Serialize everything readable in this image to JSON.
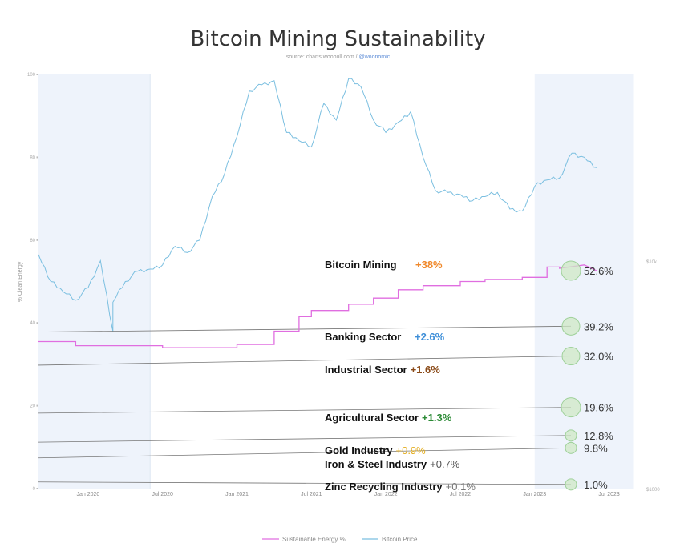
{
  "chart_data": {
    "type": "line",
    "title": "Bitcoin Mining Sustainability",
    "source_prefix": "source: charts.woobull.com / ",
    "source_handle": "@woonomic",
    "ylabel": "% Clean Energy",
    "ylim": [
      0,
      100
    ],
    "y_ticks": [
      "0",
      "20",
      "40",
      "60",
      "80",
      "100"
    ],
    "y2_ticks": [
      "$1000",
      "$10k"
    ],
    "x_ticks": [
      "Jan 2020",
      "Jul 2020",
      "Jan 2021",
      "Jul 2021",
      "Jan 2022",
      "Jul 2022",
      "Jan 2023",
      "Jul 2023"
    ],
    "legend": [
      "Sustainable Energy %",
      "Bitcoin Price"
    ],
    "colors": {
      "energy": "#e06ee0",
      "price": "#7bbfe0",
      "sector_line": "#777777",
      "bubble_fill": "#cfe8c6",
      "bubble_stroke": "#9fd19a",
      "shade": "#eef3fb"
    },
    "energy_series": {
      "dates": [
        "2019-09",
        "2019-12",
        "2019-12",
        "2020-01",
        "2020-07",
        "2020-07",
        "2021-01",
        "2021-01",
        "2021-04",
        "2021-04",
        "2021-06",
        "2021-06",
        "2021-07",
        "2021-07",
        "2021-10",
        "2021-10",
        "2021-12",
        "2021-12",
        "2022-02",
        "2022-02",
        "2022-04",
        "2022-04",
        "2022-07",
        "2022-07",
        "2022-09",
        "2022-09",
        "2022-12",
        "2022-12",
        "2023-02",
        "2023-02",
        "2023-03",
        "2023-03",
        "2023-05",
        "2023-06"
      ],
      "values": [
        35.5,
        35.5,
        34.5,
        34.5,
        34.5,
        34.0,
        34.0,
        34.8,
        34.8,
        38.0,
        38.0,
        41.5,
        41.5,
        43.0,
        43.0,
        44.5,
        44.5,
        46.0,
        46.0,
        48.0,
        48.0,
        49.0,
        49.0,
        50.0,
        50.0,
        50.5,
        50.5,
        51.0,
        51.0,
        53.5,
        53.5,
        53.2,
        54.0,
        52.6
      ]
    },
    "price_series": {
      "dates": [
        "2019-09",
        "2019-10",
        "2019-11",
        "2019-12",
        "2020-01",
        "2020-02",
        "2020-03",
        "2020-03",
        "2020-04",
        "2020-05",
        "2020-06",
        "2020-07",
        "2020-08",
        "2020-09",
        "2020-10",
        "2020-11",
        "2020-12",
        "2021-01",
        "2021-02",
        "2021-03",
        "2021-04",
        "2021-05",
        "2021-06",
        "2021-07",
        "2021-08",
        "2021-09",
        "2021-10",
        "2021-11",
        "2021-12",
        "2022-01",
        "2022-02",
        "2022-03",
        "2022-04",
        "2022-05",
        "2022-06",
        "2022-07",
        "2022-08",
        "2022-09",
        "2022-10",
        "2022-11",
        "2022-12",
        "2023-01",
        "2023-02",
        "2023-03",
        "2023-04",
        "2023-05",
        "2023-06"
      ],
      "values": [
        56.5,
        50.0,
        47.5,
        45.5,
        48.5,
        55.0,
        38.0,
        45.0,
        50.0,
        52.5,
        53.0,
        54.0,
        58.5,
        57.0,
        60.0,
        70.5,
        76.0,
        85.0,
        96.0,
        97.5,
        98.5,
        86.0,
        84.0,
        82.5,
        93.0,
        89.0,
        99.0,
        97.0,
        89.0,
        86.0,
        88.5,
        91.0,
        80.0,
        72.0,
        71.5,
        71.0,
        69.5,
        70.5,
        71.5,
        67.5,
        67.0,
        73.0,
        74.5,
        75.0,
        81.0,
        80.0,
        77.5
      ]
    },
    "sectors": [
      {
        "name": "Bitcoin Mining",
        "change": "+38%",
        "value_label": "52.6%",
        "value": 52.6,
        "start": 52.6,
        "change_color": "#f0882a"
      },
      {
        "name": "Banking Sector",
        "change": "+2.6%",
        "value_label": "39.2%",
        "value": 39.2,
        "start": 37.8,
        "change_color": "#3f8fd8"
      },
      {
        "name": "Industrial Sector",
        "change": "+1.6%",
        "value_label": "32.0%",
        "value": 32.0,
        "start": 29.8,
        "change_color": "#8a4a18"
      },
      {
        "name": "Agricultural Sector",
        "change": "+1.3%",
        "value_label": "19.6%",
        "value": 19.6,
        "start": 18.2,
        "change_color": "#2b8a35"
      },
      {
        "name": "Gold Industry",
        "change": "+0.9%",
        "value_label": "12.8%",
        "value": 12.8,
        "start": 11.2,
        "change_color": "#e3ac1c"
      },
      {
        "name": "Iron & Steel Industry",
        "change": "+0.7%",
        "value_label": "9.8%",
        "value": 9.8,
        "start": 7.4,
        "change_color": "#555555"
      },
      {
        "name": "Zinc Recycling Industry",
        "change": "+0.1%",
        "value_label": "1.0%",
        "value": 1.0,
        "start": 1.6,
        "change_color": "#777777"
      }
    ],
    "shaded_ranges": [
      [
        "2019-09",
        "2020-06"
      ],
      [
        "2023-01",
        "2023-09"
      ]
    ],
    "grid": false,
    "legend_position": "bottom"
  }
}
